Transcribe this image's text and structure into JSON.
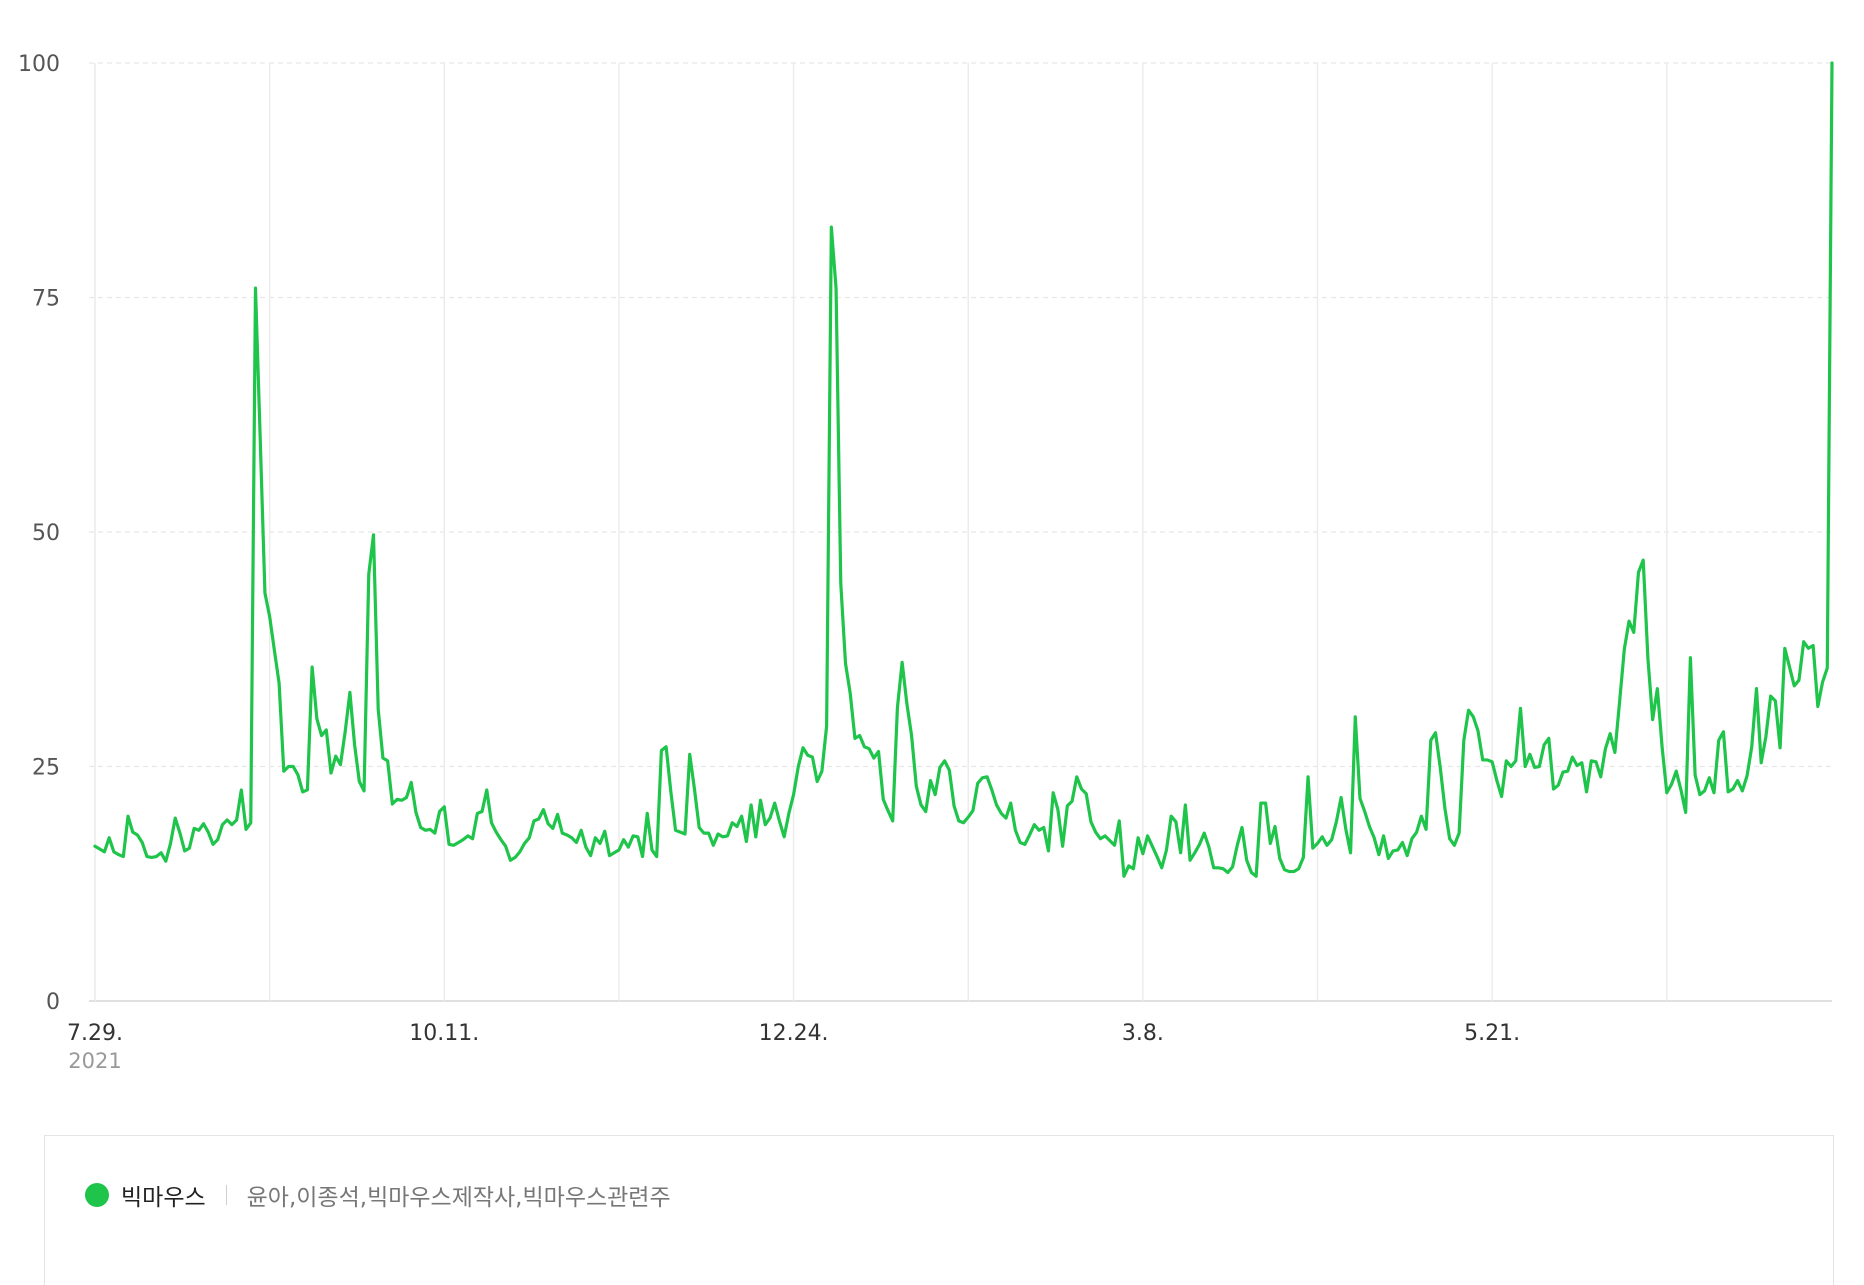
{
  "chart_data": {
    "type": "line",
    "ylim": [
      0,
      100
    ],
    "yticks": [
      0,
      25,
      50,
      75,
      100
    ],
    "y_tick_labels": [
      "0",
      "25",
      "50",
      "75",
      "100"
    ],
    "x_tick_labels": [
      {
        "label": "7.29.",
        "year": "2021",
        "day_index": 0
      },
      {
        "label": "10.11.",
        "day_index": 74
      },
      {
        "label": "12.24.",
        "day_index": 148
      },
      {
        "label": "3.8.",
        "day_index": 222
      },
      {
        "label": "5.21.",
        "day_index": 296
      }
    ],
    "x_grid_day_index": [
      0,
      37,
      74,
      111,
      148,
      185,
      222,
      259,
      296,
      333
    ],
    "x_total_days": 369,
    "grid": true,
    "series": [
      {
        "name": "빅마우스",
        "color": "#1fc44a",
        "values": [
          16.5,
          16.2,
          15.9,
          17.4,
          15.9,
          15.6,
          15.4,
          19.7,
          18.0,
          17.7,
          16.9,
          15.4,
          15.3,
          15.4,
          15.8,
          14.9,
          16.8,
          19.5,
          17.9,
          16.0,
          16.3,
          18.4,
          18.2,
          18.9,
          18.0,
          16.7,
          17.2,
          18.8,
          19.3,
          18.8,
          19.3,
          22.5,
          18.3,
          19.0,
          76.0,
          60.0,
          43.5,
          41.0,
          37.4,
          33.9,
          24.5,
          25.0,
          25.0,
          24.1,
          22.3,
          22.5,
          35.6,
          30.1,
          28.3,
          28.9,
          24.3,
          26.1,
          25.2,
          28.7,
          32.9,
          27.3,
          23.4,
          22.4,
          45.5,
          49.7,
          31.1,
          25.9,
          25.6,
          21.0,
          21.5,
          21.4,
          21.7,
          23.3,
          20.1,
          18.5,
          18.2,
          18.3,
          17.9,
          20.2,
          20.7,
          16.7,
          16.6,
          16.9,
          17.2,
          17.6,
          17.3,
          20.0,
          20.2,
          22.5,
          19.0,
          18.0,
          17.2,
          16.5,
          15.0,
          15.3,
          15.9,
          16.8,
          17.4,
          19.2,
          19.4,
          20.4,
          18.9,
          18.4,
          19.9,
          17.9,
          17.7,
          17.4,
          16.9,
          18.2,
          16.4,
          15.5,
          17.4,
          16.8,
          18.1,
          15.5,
          15.8,
          16.1,
          17.2,
          16.4,
          17.6,
          17.5,
          15.4,
          20.0,
          16.1,
          15.4,
          26.7,
          27.1,
          22.3,
          18.2,
          18.0,
          17.8,
          26.3,
          22.6,
          18.5,
          17.9,
          17.9,
          16.6,
          17.8,
          17.5,
          17.6,
          19.0,
          18.6,
          19.7,
          17.0,
          20.9,
          17.5,
          21.4,
          18.8,
          19.5,
          21.1,
          19.2,
          17.5,
          20.0,
          22.0,
          25.0,
          27.0,
          26.2,
          26.0,
          23.4,
          24.5,
          29.3,
          82.5,
          76.0,
          44.5,
          36.0,
          32.8,
          28.0,
          28.3,
          27.1,
          26.9,
          25.9,
          26.6,
          21.5,
          20.3,
          19.2,
          31.3,
          36.1,
          31.7,
          28.3,
          22.9,
          20.9,
          20.2,
          23.5,
          22.0,
          24.9,
          25.6,
          24.6,
          20.8,
          19.2,
          19.0,
          19.6,
          20.3,
          23.2,
          23.8,
          23.9,
          22.5,
          20.9,
          20.0,
          19.5,
          21.1,
          18.2,
          16.9,
          16.7,
          17.7,
          18.8,
          18.2,
          18.5,
          16.0,
          22.2,
          20.4,
          16.5,
          20.8,
          21.3,
          23.9,
          22.6,
          22.1,
          19.1,
          18.0,
          17.3,
          17.6,
          17.1,
          16.6,
          19.2,
          13.3,
          14.4,
          14.1,
          17.4,
          15.7,
          17.6,
          16.5,
          15.4,
          14.2,
          16.1,
          19.7,
          19.1,
          15.8,
          20.9,
          15.0,
          15.8,
          16.7,
          17.9,
          16.4,
          14.2,
          14.2,
          14.1,
          13.7,
          14.3,
          16.6,
          18.5,
          15.0,
          13.7,
          13.3,
          21.1,
          21.1,
          16.8,
          18.6,
          15.2,
          14.0,
          13.8,
          13.8,
          14.1,
          15.3,
          23.9,
          16.3,
          16.8,
          17.5,
          16.6,
          17.2,
          19.1,
          21.7,
          18.3,
          15.8,
          30.3,
          21.6,
          20.2,
          18.6,
          17.4,
          15.6,
          17.6,
          15.2,
          16.0,
          16.1,
          16.9,
          15.5,
          17.3,
          18.0,
          19.7,
          18.3,
          27.8,
          28.6,
          24.9,
          20.5,
          17.3,
          16.6,
          17.9,
          27.8,
          31.0,
          30.3,
          28.8,
          25.7,
          25.7,
          25.5,
          23.5,
          21.8,
          25.6,
          25.0,
          25.6,
          31.2,
          25.0,
          26.3,
          24.9,
          25.0,
          27.3,
          28.0,
          22.6,
          23.0,
          24.4,
          24.5,
          26.0,
          25.1,
          25.4,
          22.3,
          25.6,
          25.5,
          23.9,
          26.9,
          28.5,
          26.5,
          31.9,
          37.5,
          40.5,
          39.3,
          45.7,
          47.0,
          36.5,
          30.0,
          33.3,
          27.1,
          22.2,
          23.1,
          24.5,
          22.5,
          20.1,
          36.6,
          24.1,
          22.0,
          22.4,
          23.8,
          22.2,
          27.8,
          28.7,
          22.3,
          22.6,
          23.5,
          22.4,
          24.0,
          27.1,
          33.3,
          25.4,
          28.2,
          32.5,
          32.0,
          27.0,
          37.6,
          35.6,
          33.6,
          34.2,
          38.3,
          37.6,
          37.9,
          31.4,
          34.0,
          35.5,
          100.0
        ]
      }
    ],
    "legend": {
      "placement": "bottom-left",
      "keywords": "윤아,이종석,빅마우스제작사,빅마우스관련주"
    }
  }
}
